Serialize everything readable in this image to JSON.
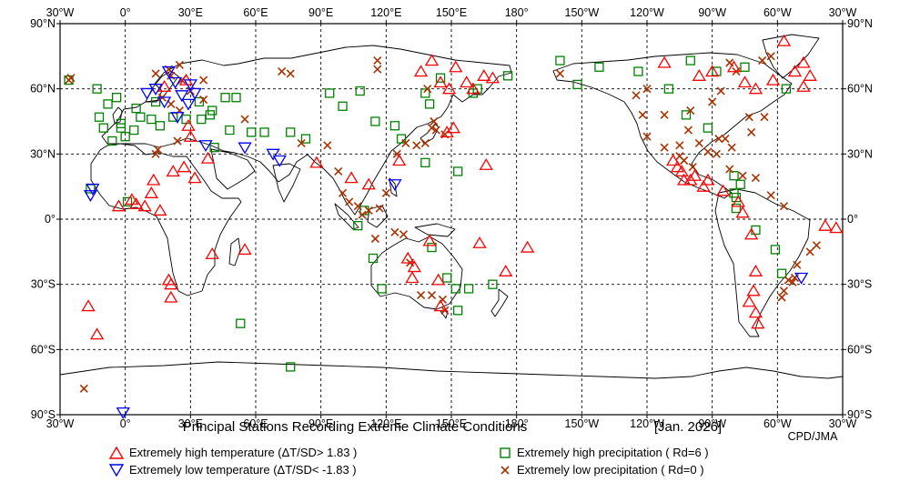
{
  "title": "Principal Stations Recording Extreme Climate Conditions",
  "date": "[Jan. 2026]",
  "credit": "CPD/JMA",
  "lon_labels_top": [
    "30°W",
    "0°",
    "30°E",
    "60°E",
    "90°E",
    "120°E",
    "150°E",
    "180°",
    "150°W",
    "120°W",
    "90°W",
    "60°W",
    "30°W"
  ],
  "lon_labels_bottom": [
    "30°W",
    "0°",
    "30°E",
    "60°E",
    "90°E",
    "120°E",
    "150°E",
    "180°",
    "150°W",
    "120°W",
    "90°W",
    "60°W",
    "30°W"
  ],
  "lat_labels": [
    "90°N",
    "60°N",
    "30°N",
    "0°",
    "30°S",
    "60°S",
    "90°S"
  ],
  "legend": {
    "high_temp": "Extremely high temperature (ΔT/SD> 1.83 )",
    "low_temp": "Extremely low temperature  (ΔT/SD< -1.83 )",
    "high_precip": "Extremely high precipitation ( Rd=6 )",
    "low_precip": "Extremely low precipitation ( Rd=0 )"
  },
  "colors": {
    "high_temp": "#ff0000",
    "low_temp": "#0000ff",
    "high_precip": "#008000",
    "low_precip": "#a83200"
  },
  "stations": {
    "high_temp": [
      [
        -17,
        -40
      ],
      [
        -3,
        6
      ],
      [
        3,
        9
      ],
      [
        5,
        7
      ],
      [
        9,
        6
      ],
      [
        12,
        12
      ],
      [
        13,
        18
      ],
      [
        16,
        4
      ],
      [
        20,
        -28
      ],
      [
        21,
        -30
      ],
      [
        21,
        -36
      ],
      [
        22,
        22
      ],
      [
        27,
        24
      ],
      [
        29,
        43
      ],
      [
        30,
        38
      ],
      [
        32,
        19
      ],
      [
        38,
        28
      ],
      [
        40,
        -16
      ],
      [
        55,
        -14
      ],
      [
        88,
        26
      ],
      [
        104,
        19
      ],
      [
        112,
        16
      ],
      [
        126,
        27
      ],
      [
        130,
        -18
      ],
      [
        132,
        -27
      ],
      [
        133,
        -22
      ],
      [
        140,
        -10
      ],
      [
        144,
        -28
      ],
      [
        145,
        -40
      ],
      [
        148,
        40
      ],
      [
        151,
        42
      ],
      [
        163,
        -11
      ],
      [
        166,
        25
      ],
      [
        175,
        -24
      ],
      [
        -175,
        -13
      ],
      [
        136,
        68
      ],
      [
        141,
        73
      ],
      [
        145,
        63
      ],
      [
        149,
        60
      ],
      [
        152,
        70
      ],
      [
        157,
        63
      ],
      [
        160,
        60
      ],
      [
        165,
        66
      ],
      [
        169,
        65
      ],
      [
        -112,
        72
      ],
      [
        -108,
        27
      ],
      [
        -106,
        24
      ],
      [
        -104,
        22
      ],
      [
        -103,
        18
      ],
      [
        -100,
        18
      ],
      [
        -98,
        20
      ],
      [
        -94,
        15
      ],
      [
        -92,
        18
      ],
      [
        -85,
        13
      ],
      [
        -78,
        8
      ],
      [
        -76,
        3
      ],
      [
        -72,
        -7
      ],
      [
        -70,
        -24
      ],
      [
        -71,
        -33
      ],
      [
        -73,
        -38
      ],
      [
        -70,
        -43
      ],
      [
        -69,
        -48
      ],
      [
        -57,
        82
      ],
      [
        -52,
        68
      ],
      [
        -48,
        61
      ],
      [
        -38,
        -3
      ],
      [
        -33,
        -4
      ],
      [
        -13,
        -53
      ],
      [
        -96,
        66
      ],
      [
        -90,
        68
      ],
      [
        -80,
        70
      ],
      [
        -75,
        63
      ],
      [
        -70,
        60
      ],
      [
        -62,
        64
      ],
      [
        -48,
        72
      ],
      [
        -45,
        66
      ],
      [
        28,
        64
      ],
      [
        18,
        61
      ]
    ],
    "low_temp": [
      [
        -1,
        -89
      ],
      [
        -15,
        14
      ],
      [
        -16,
        11
      ],
      [
        20,
        68
      ],
      [
        23,
        63
      ],
      [
        14,
        60
      ],
      [
        10,
        58
      ],
      [
        18,
        54
      ],
      [
        26,
        57
      ],
      [
        30,
        62
      ],
      [
        32,
        58
      ],
      [
        29,
        53
      ],
      [
        24,
        47
      ],
      [
        37,
        34
      ],
      [
        55,
        33
      ],
      [
        68,
        30
      ],
      [
        71,
        27
      ],
      [
        124,
        16
      ],
      [
        -49,
        -27
      ]
    ],
    "high_precip": [
      [
        -13,
        60
      ],
      [
        -8,
        53
      ],
      [
        -4,
        56
      ],
      [
        -12,
        47
      ],
      [
        -10,
        42
      ],
      [
        -2,
        42
      ],
      [
        0,
        38
      ],
      [
        4,
        41
      ],
      [
        7,
        47
      ],
      [
        -2,
        44
      ],
      [
        12,
        46
      ],
      [
        16,
        43
      ],
      [
        22,
        47
      ],
      [
        28,
        46
      ],
      [
        35,
        46
      ],
      [
        40,
        50
      ],
      [
        34,
        54
      ],
      [
        46,
        56
      ],
      [
        51,
        56
      ],
      [
        48,
        41
      ],
      [
        41,
        33
      ],
      [
        39,
        48
      ],
      [
        58,
        40
      ],
      [
        64,
        40
      ],
      [
        76,
        40
      ],
      [
        83,
        37
      ],
      [
        94,
        58
      ],
      [
        100,
        52
      ],
      [
        108,
        59
      ],
      [
        115,
        45
      ],
      [
        124,
        43
      ],
      [
        127,
        37
      ],
      [
        138,
        58
      ],
      [
        140,
        53
      ],
      [
        145,
        65
      ],
      [
        138,
        26
      ],
      [
        153,
        22
      ],
      [
        141,
        -13
      ],
      [
        148,
        -27
      ],
      [
        152,
        -32
      ],
      [
        158,
        -32
      ],
      [
        153,
        -42
      ],
      [
        169,
        -30
      ],
      [
        160,
        58
      ],
      [
        162,
        60
      ],
      [
        176,
        66
      ],
      [
        -142,
        70
      ],
      [
        -124,
        68
      ],
      [
        -110,
        60
      ],
      [
        -102,
        48
      ],
      [
        -92,
        42
      ],
      [
        -80,
        20
      ],
      [
        -79,
        10
      ],
      [
        -79,
        5
      ],
      [
        -70,
        -5
      ],
      [
        -61,
        -14
      ],
      [
        -58,
        -25
      ],
      [
        -77,
        16
      ],
      [
        -80,
        12
      ],
      [
        -160,
        73
      ],
      [
        -152,
        62
      ],
      [
        -100,
        73
      ],
      [
        -88,
        68
      ],
      [
        -75,
        70
      ],
      [
        -56,
        60
      ],
      [
        -16,
        14
      ],
      [
        1,
        8
      ],
      [
        53,
        -48
      ],
      [
        76,
        -68
      ],
      [
        110,
        4
      ],
      [
        107,
        -3
      ],
      [
        114,
        -18
      ],
      [
        118,
        -32
      ],
      [
        -6,
        36
      ],
      [
        -26,
        64
      ],
      [
        5,
        51
      ],
      [
        14,
        54
      ]
    ],
    "low_precip": [
      [
        -26,
        64
      ],
      [
        -25,
        65
      ],
      [
        25,
        71
      ],
      [
        14,
        67
      ],
      [
        20,
        69
      ],
      [
        26,
        64
      ],
      [
        30,
        59
      ],
      [
        36,
        64
      ],
      [
        21,
        66
      ],
      [
        17,
        56
      ],
      [
        25,
        50
      ],
      [
        36,
        55
      ],
      [
        21,
        53
      ],
      [
        24,
        36
      ],
      [
        14,
        30
      ],
      [
        15,
        32
      ],
      [
        55,
        46
      ],
      [
        72,
        68
      ],
      [
        76,
        67
      ],
      [
        81,
        35
      ],
      [
        93,
        34
      ],
      [
        98,
        22
      ],
      [
        100,
        12
      ],
      [
        103,
        8
      ],
      [
        107,
        6
      ],
      [
        109,
        2
      ],
      [
        112,
        4
      ],
      [
        117,
        5
      ],
      [
        120,
        12
      ],
      [
        115,
        -9
      ],
      [
        124,
        -6
      ],
      [
        128,
        -7
      ],
      [
        136,
        -35
      ],
      [
        141,
        -35
      ],
      [
        146,
        -37
      ],
      [
        147,
        -42
      ],
      [
        131,
        -20
      ],
      [
        125,
        30
      ],
      [
        129,
        35
      ],
      [
        134,
        34
      ],
      [
        138,
        35
      ],
      [
        141,
        42
      ],
      [
        142,
        45
      ],
      [
        143,
        41
      ],
      [
        147,
        39
      ],
      [
        139,
        60
      ],
      [
        116,
        69
      ],
      [
        116,
        73
      ],
      [
        -160,
        67
      ],
      [
        -122,
        48
      ],
      [
        -112,
        48
      ],
      [
        -120,
        38
      ],
      [
        -112,
        33
      ],
      [
        -105,
        34
      ],
      [
        -96,
        35
      ],
      [
        -92,
        31
      ],
      [
        -88,
        30
      ],
      [
        -87,
        37
      ],
      [
        -84,
        37
      ],
      [
        -81,
        33
      ],
      [
        -72,
        40
      ],
      [
        -73,
        47
      ],
      [
        -66,
        47
      ],
      [
        -100,
        50
      ],
      [
        -90,
        54
      ],
      [
        -86,
        59
      ],
      [
        -101,
        41
      ],
      [
        -105,
        29
      ],
      [
        -103,
        27
      ],
      [
        -99,
        24
      ],
      [
        -82,
        23
      ],
      [
        -76,
        20
      ],
      [
        -70,
        19
      ],
      [
        -63,
        11
      ],
      [
        -57,
        6
      ],
      [
        -42,
        -12
      ],
      [
        -45,
        -15
      ],
      [
        -51,
        -21
      ],
      [
        -52,
        -27
      ],
      [
        -55,
        -28
      ],
      [
        -57,
        -33
      ],
      [
        -58,
        -36
      ],
      [
        -53,
        -29
      ],
      [
        -19,
        -78
      ],
      [
        -79,
        68
      ],
      [
        -82,
        72
      ],
      [
        -63,
        75
      ],
      [
        -67,
        73
      ],
      [
        -120,
        60
      ],
      [
        -125,
        57
      ]
    ]
  }
}
